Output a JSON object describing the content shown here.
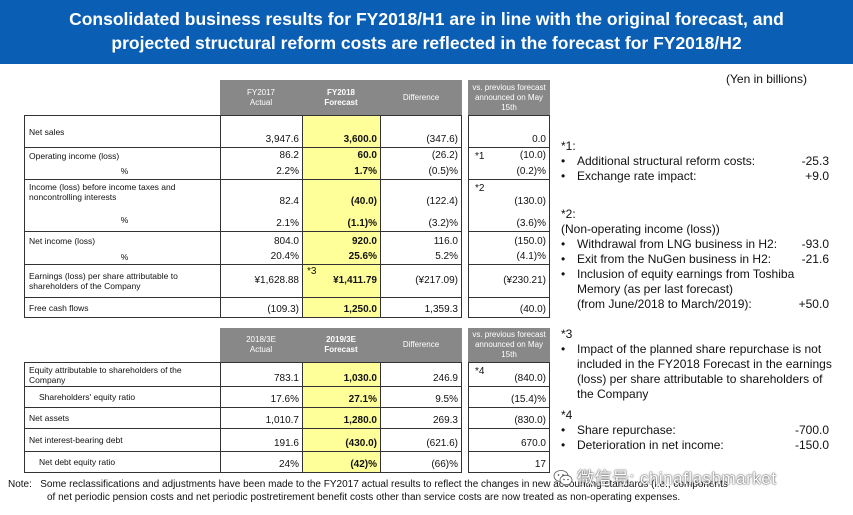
{
  "title_line1": "Consolidated business results for FY2018/H1 are in line with the original forecast, and",
  "title_line2": "projected structural reform costs are reflected in the forecast for FY2018/H2",
  "unit": "(Yen in billions)",
  "table1": {
    "headers": {
      "col1_line1": "FY2017",
      "col1_line2": "Actual",
      "col2_line1": "FY2018",
      "col2_line2": "Forecast",
      "col3": "Difference",
      "col4_line1": "vs. previous forecast",
      "col4_line2": "announced on May",
      "col4_line3": "15th"
    },
    "rows": [
      {
        "label": "Net sales",
        "actual": "3,947.6",
        "forecast": "3,600.0",
        "diff": "(347.6)",
        "vs": "0.0",
        "mark": ""
      },
      {
        "label": "Operating income (loss)",
        "actual": "86.2",
        "forecast": "60.0",
        "diff": "(26.2)",
        "vs": "(10.0)",
        "mark": "*1"
      },
      {
        "label": "%",
        "actual": "2.2%",
        "forecast": "1.7%",
        "diff": "(0.5)%",
        "vs": "(0.2)%",
        "mark": ""
      },
      {
        "label": "Income (loss) before income taxes and noncontrolling interests",
        "actual": "82.4",
        "forecast": "(40.0)",
        "diff": "(122.4)",
        "vs": "(130.0)",
        "mark": "*2"
      },
      {
        "label": "%",
        "actual": "2.1%",
        "forecast": "(1.1)%",
        "diff": "(3.2)%",
        "vs": "(3.6)%",
        "mark": ""
      },
      {
        "label": "Net income (loss)",
        "actual": "804.0",
        "forecast": "920.0",
        "diff": "116.0",
        "vs": "(150.0)",
        "mark": ""
      },
      {
        "label": "%",
        "actual": "20.4%",
        "forecast": "25.6%",
        "diff": "5.2%",
        "vs": "(4.1)%",
        "mark": ""
      },
      {
        "label": "Earnings (loss) per share attributable to shareholders of the Company",
        "actual": "¥1,628.88",
        "forecast": "¥1,411.79",
        "diff": "(¥217.09)",
        "vs": "(¥230.21)",
        "mark": "*3"
      },
      {
        "label": "Free cash flows",
        "actual": "(109.3)",
        "forecast": "1,250.0",
        "diff": "1,359.3",
        "vs": "(40.0)",
        "mark": ""
      }
    ]
  },
  "table2": {
    "headers": {
      "col1_line1": "2018/3E",
      "col1_line2": "Actual",
      "col2_line1": "2019/3E",
      "col2_line2": "Forecast",
      "col3": "Difference",
      "col4_line1": "vs. previous forecast",
      "col4_line2": "announced on May",
      "col4_line3": "15th"
    },
    "rows": [
      {
        "label": "Equity attributable to shareholders of the Company",
        "actual": "783.1",
        "forecast": "1,030.0",
        "diff": "246.9",
        "vs": "(840.0)",
        "mark": "*4"
      },
      {
        "label": "Shareholders' equity ratio",
        "actual": "17.6%",
        "forecast": "27.1%",
        "diff": "9.5%",
        "vs": "(15.4)%",
        "mark": ""
      },
      {
        "label": "Net assets",
        "actual": "1,010.7",
        "forecast": "1,280.0",
        "diff": "269.3",
        "vs": "(830.0)",
        "mark": ""
      },
      {
        "label": "Net interest-bearing debt",
        "actual": "191.6",
        "forecast": "(430.0)",
        "diff": "(621.6)",
        "vs": "670.0",
        "mark": ""
      },
      {
        "label": "Net debt equity ratio",
        "actual": "24%",
        "forecast": "(42)%",
        "diff": "(66)%",
        "vs": "17",
        "mark": ""
      }
    ]
  },
  "notes": {
    "n1_title": "*1:",
    "n1_items": [
      {
        "text": "Additional structural reform costs:",
        "value": "-25.3"
      },
      {
        "text": "Exchange rate impact:",
        "value": "+9.0"
      }
    ],
    "n2_title": "*2:",
    "n2_sub": "(Non-operating income (loss))",
    "n2_items": [
      {
        "text": "Withdrawal from LNG business in H2:",
        "value": "-93.0"
      },
      {
        "text": "Exit from the NuGen business in H2:",
        "value": "-21.6"
      }
    ],
    "n2_item3_line1": "Inclusion of equity earnings from Toshiba",
    "n2_item3_line2": "Memory (as per last forecast)",
    "n2_item3_line3": "(from June/2018 to March/2019):",
    "n2_item3_value": "+50.0",
    "n3_title": "*3",
    "n3_line1": "Impact of the planned share repurchase is not",
    "n3_line2": "included in the FY2018 Forecast in the earnings",
    "n3_line3": "(loss) per share attributable to shareholders of",
    "n3_line4": "the Company",
    "n4_title": "*4",
    "n4_items": [
      {
        "text": "Share repurchase:",
        "value": "-700.0"
      },
      {
        "text": "Deterioration in net income:",
        "value": "-150.0"
      }
    ]
  },
  "footnote_line1": "Note:   Some reclassifications and adjustments have been made to the FY2017 actual results to reflect the changes in new accounting standards (i.e., components",
  "footnote_line2": "of net periodic pension costs and net periodic postretirement benefit costs other than service costs are now treated as non-operating expenses.",
  "watermark": "微信号: chinaflashmarket"
}
